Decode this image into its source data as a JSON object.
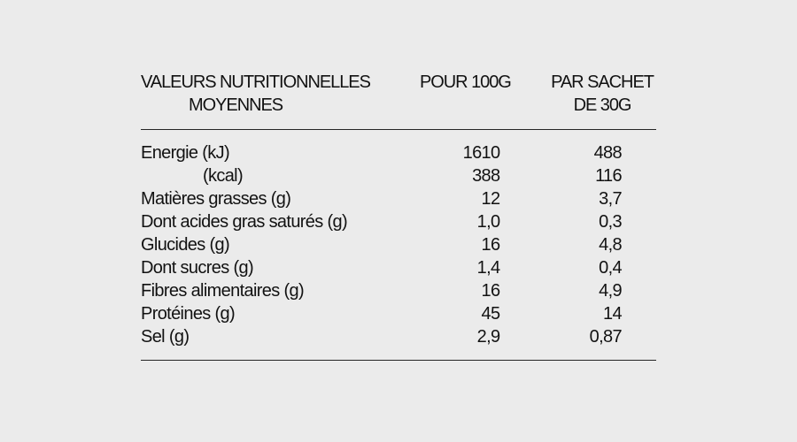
{
  "page": {
    "background_color": "#ebebeb",
    "text_color": "#121212",
    "rule_color": "#252525"
  },
  "table": {
    "header": {
      "col1_line1": "VALEURS NUTRITIONNELLES",
      "col1_line2": "MOYENNES",
      "col2": "POUR 100G",
      "col3_line1": "PAR SACHET",
      "col3_line2": "DE 30G"
    },
    "rows": [
      {
        "label": "Energie (kJ)",
        "per_100g": "1610",
        "per_sachet": "488",
        "indented": false
      },
      {
        "label": "(kcal)",
        "per_100g": "388",
        "per_sachet": "116",
        "indented": true
      },
      {
        "label": "Matières grasses (g)",
        "per_100g": "12",
        "per_sachet": "3,7",
        "indented": false
      },
      {
        "label": "Dont acides gras saturés (g)",
        "per_100g": "1,0",
        "per_sachet": "0,3",
        "indented": false
      },
      {
        "label": "Glucides (g)",
        "per_100g": "16",
        "per_sachet": "4,8",
        "indented": false
      },
      {
        "label": "Dont sucres (g)",
        "per_100g": "1,4",
        "per_sachet": "0,4",
        "indented": false
      },
      {
        "label": "Fibres alimentaires (g)",
        "per_100g": "16",
        "per_sachet": "4,9",
        "indented": false
      },
      {
        "label": "Protéines (g)",
        "per_100g": "45",
        "per_sachet": "14",
        "indented": false
      },
      {
        "label": "Sel (g)",
        "per_100g": "2,9",
        "per_sachet": "0,87",
        "indented": false
      }
    ]
  }
}
